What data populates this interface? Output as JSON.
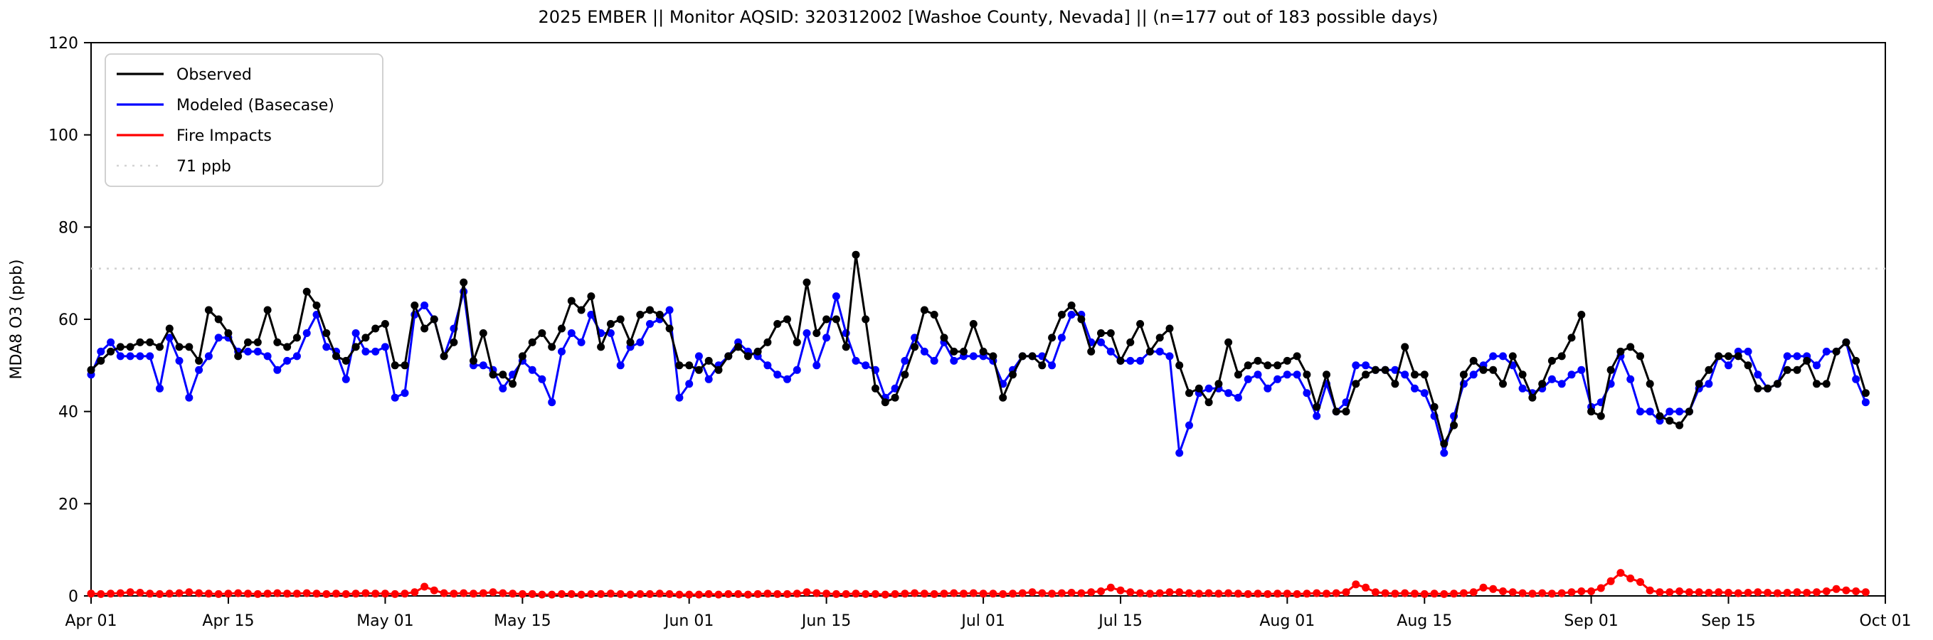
{
  "chart_data": {
    "type": "line",
    "title": "2025 EMBER || Monitor AQSID: 320312002 [Washoe County, Nevada] || (n=177 out of 183 possible days)",
    "ylabel": "MDA8 O3 (ppb)",
    "xlabel": "",
    "ylim": [
      0,
      120
    ],
    "yticks": [
      0,
      20,
      40,
      60,
      80,
      100,
      120
    ],
    "x_domain_days": 183,
    "x_start_label": "Apr 01",
    "xticks": [
      {
        "label": "Apr 01",
        "day": 0
      },
      {
        "label": "Apr 15",
        "day": 14
      },
      {
        "label": "May 01",
        "day": 30
      },
      {
        "label": "May 15",
        "day": 44
      },
      {
        "label": "Jun 01",
        "day": 61
      },
      {
        "label": "Jun 15",
        "day": 75
      },
      {
        "label": "Jul 01",
        "day": 91
      },
      {
        "label": "Jul 15",
        "day": 105
      },
      {
        "label": "Aug 01",
        "day": 122
      },
      {
        "label": "Aug 15",
        "day": 136
      },
      {
        "label": "Sep 01",
        "day": 153
      },
      {
        "label": "Sep 15",
        "day": 167
      },
      {
        "label": "Oct 01",
        "day": 183
      }
    ],
    "grid": false,
    "legend_position": "upper left",
    "threshold": {
      "label": "71 ppb",
      "value": 71,
      "color": "#d3d3d3",
      "style": "dotted"
    },
    "series": [
      {
        "name": "Observed",
        "color": "#000000",
        "start_day": 0,
        "values": [
          49,
          51,
          53,
          54,
          54,
          55,
          55,
          54,
          58,
          54,
          54,
          51,
          62,
          60,
          57,
          52,
          55,
          55,
          62,
          55,
          54,
          56,
          66,
          63,
          57,
          52,
          51,
          54,
          56,
          58,
          59,
          50,
          50,
          63,
          58,
          60,
          52,
          55,
          68,
          51,
          57,
          48,
          48,
          46,
          52,
          55,
          57,
          54,
          58,
          64,
          62,
          65,
          54,
          59,
          60,
          55,
          61,
          62,
          61,
          58,
          50,
          50,
          49,
          51,
          49,
          52,
          54,
          52,
          53,
          55,
          59,
          60,
          55,
          68,
          57,
          60,
          60,
          54,
          74,
          60,
          45,
          42,
          43,
          48,
          54,
          62,
          61,
          56,
          53,
          53,
          59,
          53,
          52,
          43,
          48,
          52,
          52,
          50,
          56,
          61,
          63,
          60,
          53,
          57,
          57,
          51,
          55,
          59,
          53,
          56,
          58,
          50,
          44,
          45,
          42,
          46,
          55,
          48,
          50,
          51,
          50,
          50,
          51,
          52,
          48,
          41,
          48,
          40,
          40,
          46,
          48,
          49,
          49,
          46,
          54,
          48,
          48,
          41,
          33,
          37,
          48,
          51,
          49,
          49,
          46,
          52,
          48,
          43,
          46,
          51,
          52,
          56,
          61,
          40,
          39,
          49,
          53,
          54,
          52,
          46,
          39,
          38,
          37,
          40,
          46,
          49,
          52,
          52,
          52,
          50,
          45,
          45,
          46,
          49,
          49,
          51,
          46,
          46,
          53,
          55,
          51,
          44
        ]
      },
      {
        "name": "Modeled (Basecase)",
        "color": "#0000ff",
        "start_day": 0,
        "values": [
          48,
          53,
          55,
          52,
          52,
          52,
          52,
          45,
          56,
          51,
          43,
          49,
          52,
          56,
          56,
          53,
          53,
          53,
          52,
          49,
          51,
          52,
          57,
          61,
          54,
          53,
          47,
          57,
          53,
          53,
          54,
          43,
          44,
          61,
          63,
          60,
          52,
          58,
          66,
          50,
          50,
          49,
          45,
          48,
          51,
          49,
          47,
          42,
          53,
          57,
          55,
          61,
          57,
          57,
          50,
          54,
          55,
          59,
          60,
          62,
          43,
          46,
          52,
          47,
          50,
          52,
          55,
          53,
          52,
          50,
          48,
          47,
          49,
          57,
          50,
          56,
          65,
          57,
          51,
          50,
          49,
          43,
          45,
          51,
          56,
          53,
          51,
          55,
          51,
          52,
          52,
          52,
          51,
          46,
          49,
          52,
          52,
          52,
          50,
          56,
          61,
          61,
          55,
          55,
          53,
          51,
          51,
          51,
          53,
          53,
          52,
          31,
          37,
          44,
          45,
          45,
          44,
          43,
          47,
          48,
          45,
          47,
          48,
          48,
          44,
          39,
          46,
          40,
          42,
          50,
          50,
          49,
          49,
          49,
          48,
          45,
          44,
          39,
          31,
          39,
          46,
          48,
          50,
          52,
          52,
          50,
          45,
          44,
          45,
          47,
          46,
          48,
          49,
          41,
          42,
          46,
          52,
          47,
          40,
          40,
          38,
          40,
          40,
          40,
          45,
          46,
          52,
          50,
          53,
          53,
          48,
          45,
          46,
          52,
          52,
          52,
          50,
          53,
          53,
          55,
          47,
          42
        ]
      },
      {
        "name": "Fire Impacts",
        "color": "#ff0000",
        "start_day": 0,
        "values": [
          0.5,
          0.4,
          0.5,
          0.6,
          0.8,
          0.7,
          0.5,
          0.4,
          0.5,
          0.6,
          0.8,
          0.6,
          0.5,
          0.4,
          0.5,
          0.6,
          0.5,
          0.4,
          0.5,
          0.6,
          0.5,
          0.5,
          0.6,
          0.5,
          0.4,
          0.5,
          0.4,
          0.5,
          0.6,
          0.5,
          0.5,
          0.4,
          0.5,
          0.8,
          2.0,
          1.2,
          0.6,
          0.5,
          0.6,
          0.5,
          0.6,
          0.8,
          0.6,
          0.5,
          0.4,
          0.4,
          0.3,
          0.3,
          0.4,
          0.4,
          0.3,
          0.4,
          0.4,
          0.5,
          0.4,
          0.3,
          0.4,
          0.4,
          0.5,
          0.4,
          0.3,
          0.3,
          0.3,
          0.4,
          0.3,
          0.4,
          0.4,
          0.3,
          0.4,
          0.5,
          0.4,
          0.4,
          0.5,
          0.8,
          0.6,
          0.5,
          0.4,
          0.4,
          0.5,
          0.4,
          0.4,
          0.3,
          0.4,
          0.5,
          0.6,
          0.5,
          0.4,
          0.5,
          0.6,
          0.5,
          0.6,
          0.5,
          0.5,
          0.4,
          0.5,
          0.6,
          0.8,
          0.6,
          0.5,
          0.6,
          0.7,
          0.6,
          0.8,
          1.0,
          1.8,
          1.2,
          0.8,
          0.6,
          0.5,
          0.6,
          0.8,
          0.8,
          0.6,
          0.5,
          0.6,
          0.5,
          0.6,
          0.5,
          0.4,
          0.5,
          0.4,
          0.5,
          0.5,
          0.4,
          0.5,
          0.6,
          0.5,
          0.6,
          0.8,
          2.5,
          1.8,
          0.8,
          0.6,
          0.5,
          0.6,
          0.5,
          0.4,
          0.5,
          0.4,
          0.5,
          0.6,
          0.8,
          1.8,
          1.5,
          1.0,
          0.8,
          0.6,
          0.5,
          0.6,
          0.5,
          0.6,
          0.8,
          1.0,
          1.0,
          1.7,
          3.2,
          5.0,
          3.8,
          3.0,
          1.2,
          0.8,
          0.8,
          1.0,
          0.8,
          0.8,
          0.7,
          0.8,
          0.7,
          0.6,
          0.7,
          0.8,
          0.7,
          0.6,
          0.7,
          0.8,
          0.7,
          0.8,
          1.0,
          1.5,
          1.2,
          1.0,
          0.8
        ]
      }
    ]
  }
}
